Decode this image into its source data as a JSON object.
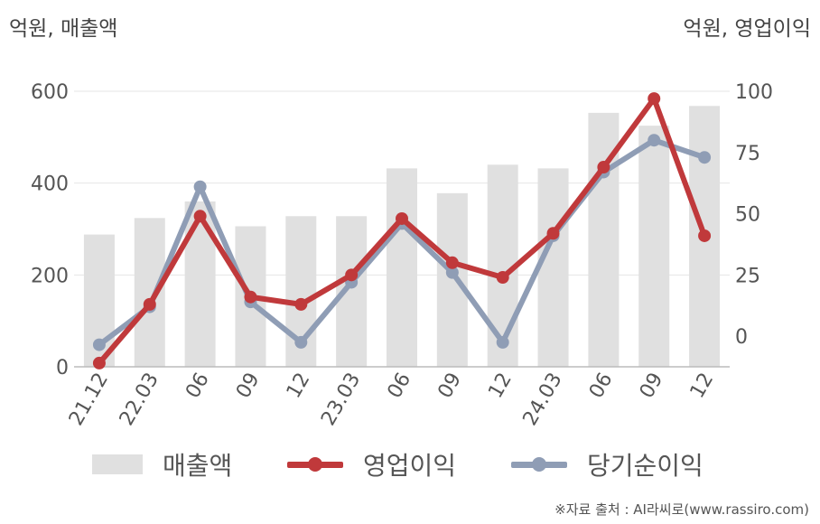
{
  "titles": {
    "left_axis": "억원, 매출액",
    "right_axis": "억원, 영업이익"
  },
  "source": "※자료 출처 : AI라씨로(www.rassiro.com)",
  "colors": {
    "bar": "#e0e0e0",
    "operating_profit": "#c0393b",
    "net_income": "#8f9db5",
    "grid": "#e6e6e6",
    "axis": "#bbbbbb"
  },
  "chart_data": {
    "type": "bar",
    "categories": [
      "21.12",
      "22.03",
      "06",
      "09",
      "12",
      "23.03",
      "06",
      "09",
      "12",
      "24.03",
      "06",
      "09",
      "12"
    ],
    "left_axis": {
      "ticks": [
        0,
        200,
        400,
        600
      ],
      "ylim": [
        0,
        600
      ]
    },
    "right_axis": {
      "ticks": [
        0,
        25,
        50,
        75,
        100
      ],
      "ylim": [
        -12.5,
        100
      ]
    },
    "grid": true,
    "legend_position": "bottom",
    "series": [
      {
        "name": "매출액",
        "type": "bar",
        "axis": "left",
        "values": [
          288,
          324,
          360,
          306,
          328,
          328,
          432,
          378,
          440,
          432,
          553,
          525,
          568
        ]
      },
      {
        "name": "영업이익",
        "type": "line",
        "axis": "right",
        "values": [
          -11,
          13,
          49,
          16,
          13,
          25,
          48,
          30,
          24,
          42,
          69,
          97,
          41
        ]
      },
      {
        "name": "당기순이익",
        "type": "line",
        "axis": "right",
        "values": [
          -3.5,
          12,
          61,
          14,
          -2.5,
          22,
          46,
          26,
          -2.5,
          41,
          67,
          80,
          73
        ]
      }
    ]
  }
}
